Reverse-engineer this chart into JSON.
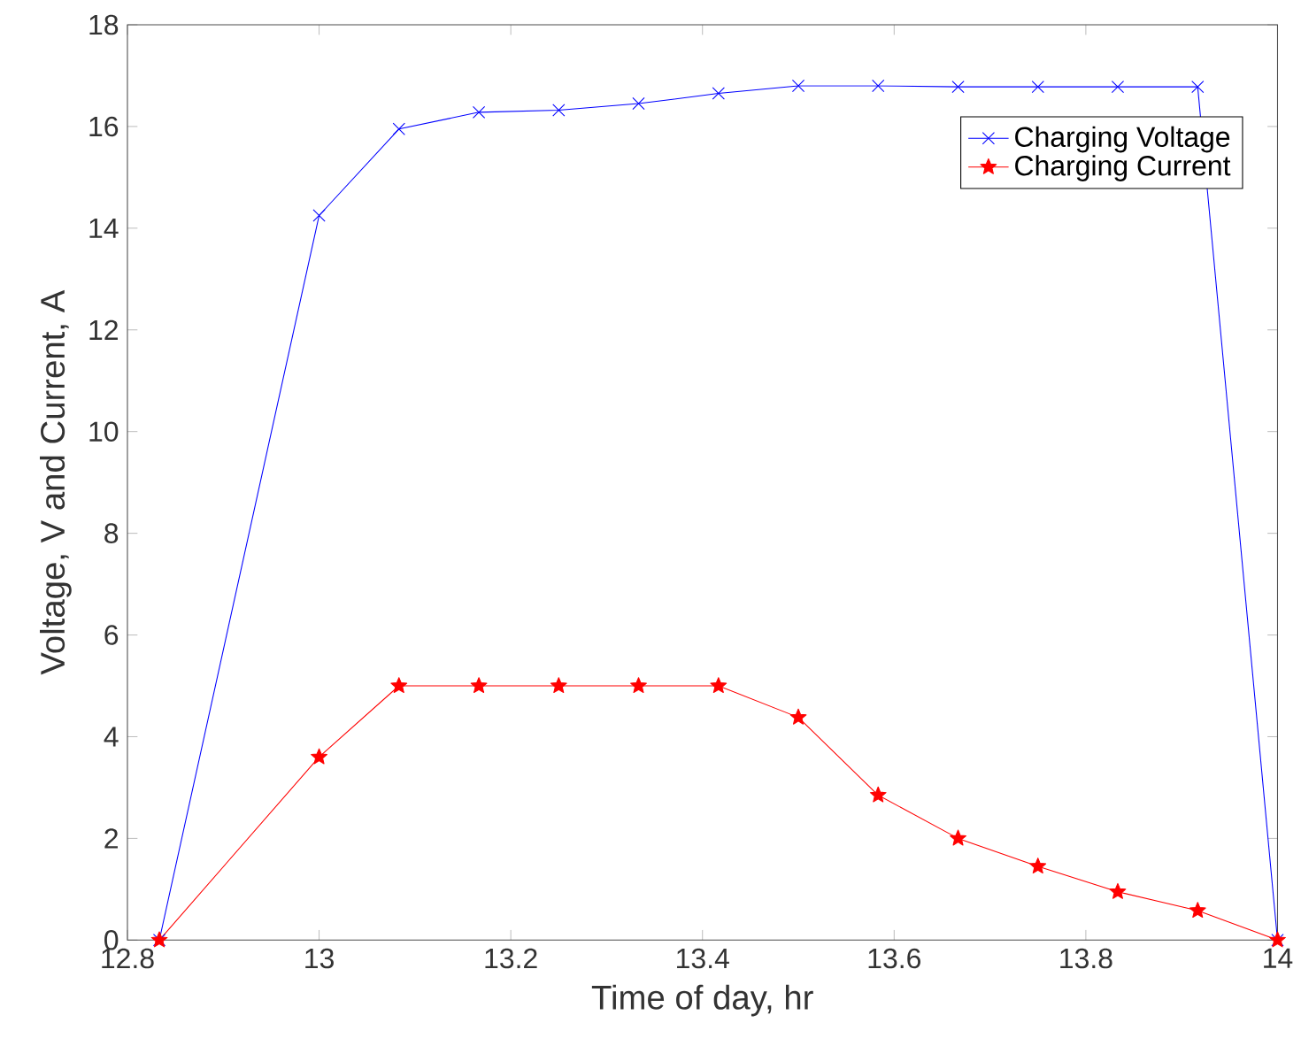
{
  "chart_data": {
    "type": "line",
    "xlabel": "Time of day, hr",
    "ylabel": "Voltage, V and Current, A",
    "x": [
      12.8333,
      13,
      13.0833,
      13.1667,
      13.25,
      13.3333,
      13.4167,
      13.5,
      13.5833,
      13.6667,
      13.75,
      13.8333,
      13.9167,
      14
    ],
    "series": [
      {
        "name": "Charging Voltage",
        "color": "#0000ff",
        "marker": "cross",
        "values": [
          0,
          14.25,
          15.95,
          16.28,
          16.32,
          16.45,
          16.65,
          16.8,
          16.8,
          16.78,
          16.78,
          16.78,
          16.78,
          0
        ]
      },
      {
        "name": "Charging Current",
        "color": "#ff0000",
        "marker": "star",
        "values": [
          0,
          3.6,
          5,
          5,
          5,
          5,
          5,
          4.38,
          2.85,
          2,
          1.45,
          0.95,
          0.58,
          0
        ]
      }
    ],
    "xlim": [
      12.8,
      14
    ],
    "ylim": [
      0,
      18
    ],
    "xticks": [
      12.8,
      13,
      13.2,
      13.4,
      13.6,
      13.8,
      14
    ],
    "yticks": [
      0,
      2,
      4,
      6,
      8,
      10,
      12,
      14,
      16,
      18
    ],
    "legend": "top right",
    "grid": false,
    "line_style": "solid"
  }
}
